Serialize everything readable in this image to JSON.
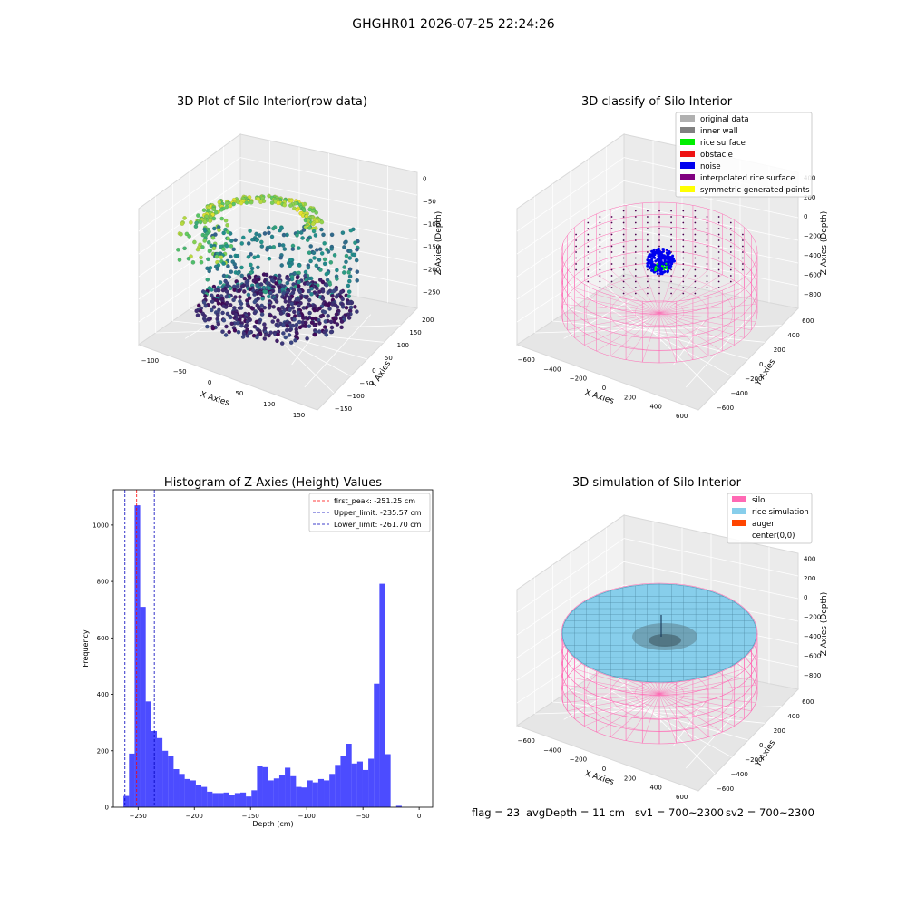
{
  "figure": {
    "suptitle": "GHGHR01 2026-07-25 22:24:26",
    "footer": {
      "flag": "flag = 23",
      "avg_depth": "avgDepth = 11 cm",
      "sv1": "sv1 = 700~2300",
      "sv2": "sv2 = 700~2300"
    }
  },
  "chart_data": [
    {
      "type": "scatter",
      "title": "3D Plot of Silo Interior(row data)",
      "xlabel": "X Axies",
      "ylabel": "Y Axies",
      "zlabel": "Z Axies (Depth)",
      "x_ticks": [
        "−100",
        "−50",
        "0",
        "50",
        "100",
        "150"
      ],
      "y_ticks": [
        "−150",
        "−100",
        "−50",
        "0",
        "50",
        "100",
        "150",
        "200"
      ],
      "z_ticks": [
        "0",
        "−50",
        "−100",
        "−150",
        "−200",
        "−250"
      ],
      "xlim": [
        -130,
        160
      ],
      "ylim": [
        -160,
        210
      ],
      "zlim": [
        -280,
        10
      ],
      "colormap": "viridis",
      "grid": true
    },
    {
      "type": "scatter",
      "title": "3D classify of Silo Interior",
      "xlabel": "X Axies",
      "ylabel": "Y Axies",
      "zlabel": "Z Axies (Depth)",
      "x_ticks": [
        "−600",
        "−400",
        "−200",
        "0",
        "200",
        "400",
        "600"
      ],
      "y_ticks": [
        "−600",
        "−400",
        "−200",
        "0",
        "200",
        "400",
        "600"
      ],
      "z_ticks": [
        "400",
        "200",
        "0",
        "−200",
        "−400",
        "−600",
        "−800"
      ],
      "legend_position": "top-right",
      "legend": [
        {
          "label": "original data",
          "color": "#b0b0b0"
        },
        {
          "label": "inner wall",
          "color": "#808080"
        },
        {
          "label": "rice surface",
          "color": "#00ee00"
        },
        {
          "label": "obstacle",
          "color": "#ee1111"
        },
        {
          "label": "noise",
          "color": "#0000ee"
        },
        {
          "label": "interpolated rice surface",
          "color": "#800080"
        },
        {
          "label": "symmetric generated points",
          "color": "#ffff00"
        }
      ],
      "grid": true
    },
    {
      "type": "bar",
      "title": "Histogram of Z-Axies (Height) Values",
      "xlabel": "Depth (cm)",
      "ylabel": "Frequency",
      "xlim": [
        -272,
        12
      ],
      "ylim": [
        0,
        1125
      ],
      "x_ticks": [
        -250,
        -200,
        -150,
        -100,
        -50,
        0
      ],
      "x_tick_labels": [
        "−250",
        "−200",
        "−150",
        "−100",
        "−50",
        "0"
      ],
      "y_ticks": [
        0,
        200,
        400,
        600,
        800,
        1000
      ],
      "y_tick_labels": [
        "0",
        "200",
        "400",
        "600",
        "800",
        "1000"
      ],
      "bin_start": -263,
      "bin_width": 4.95,
      "values": [
        40,
        190,
        1070,
        710,
        375,
        270,
        245,
        200,
        180,
        135,
        118,
        100,
        95,
        78,
        72,
        55,
        50,
        50,
        52,
        45,
        50,
        52,
        38,
        60,
        145,
        142,
        95,
        102,
        115,
        140,
        110,
        72,
        70,
        95,
        88,
        100,
        95,
        118,
        150,
        182,
        225,
        155,
        162,
        132,
        172,
        438,
        792,
        188,
        0,
        5
      ],
      "bar_color": "#0000ff",
      "lines": [
        {
          "label": "first_peak: -251.25 cm",
          "x": -251.25,
          "color": "#ff0000"
        },
        {
          "label": "Upper_limit: -235.57 cm",
          "x": -235.57,
          "color": "#0000bb"
        },
        {
          "label": "Lower_limit: -261.70 cm",
          "x": -261.7,
          "color": "#0000bb"
        }
      ],
      "legend_position": "top-right"
    },
    {
      "type": "area",
      "title": "3D simulation of Silo Interior",
      "xlabel": "X Axies",
      "ylabel": "Y Axies",
      "zlabel": "Z Axies (Depth)",
      "x_ticks": [
        "−600",
        "−400",
        "−200",
        "0",
        "200",
        "400",
        "600"
      ],
      "y_ticks": [
        "−600",
        "−400",
        "−200",
        "0",
        "200",
        "400",
        "600"
      ],
      "z_ticks": [
        "400",
        "200",
        "0",
        "−200",
        "−400",
        "−600",
        "−800"
      ],
      "legend_position": "top-right",
      "legend": [
        {
          "label": "silo",
          "color": "#ff69b4"
        },
        {
          "label": "rice simulation",
          "color": "#87ceeb"
        },
        {
          "label": "auger",
          "color": "#ff4500"
        },
        {
          "label": "center(0,0)",
          "color": "none"
        }
      ],
      "grid": true
    }
  ]
}
